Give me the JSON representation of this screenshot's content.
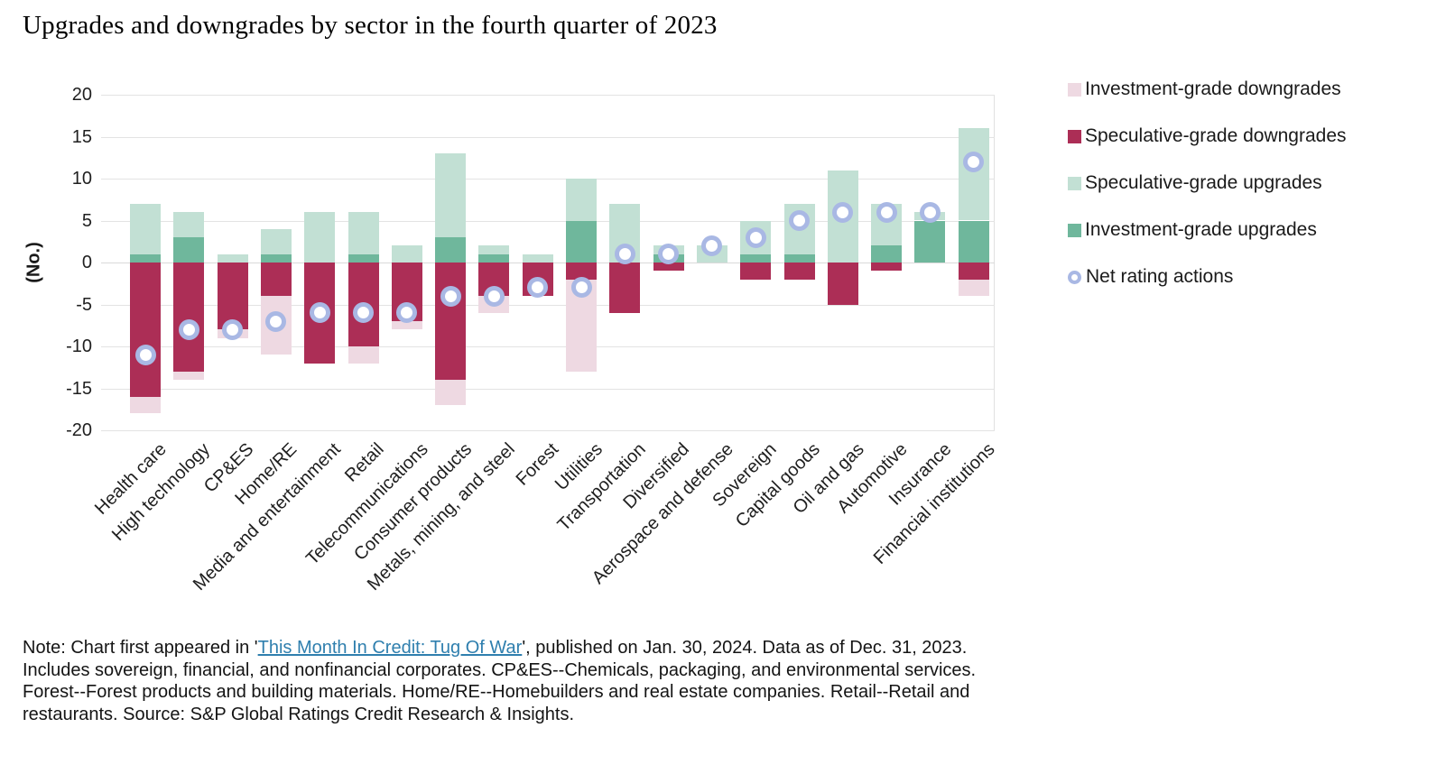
{
  "title": "Upgrades and downgrades by sector in the fourth quarter of 2023",
  "y_axis_label": "(No.)",
  "colors": {
    "investment_grade_downgrades": "#eed9e2",
    "speculative_grade_downgrades": "#ac2e56",
    "speculative_grade_upgrades": "#c2e0d4",
    "investment_grade_upgrades": "#6fb79c",
    "net_rating_marker_ring": "#a9b8e4",
    "net_rating_marker_fill": "#ffffff",
    "gridline": "#e3e3e3",
    "link": "#2f7fae"
  },
  "legend": [
    {
      "label": "Investment-grade downgrades",
      "marker": "square",
      "color": "#eed9e2"
    },
    {
      "label": "Speculative-grade downgrades",
      "marker": "square",
      "color": "#ac2e56"
    },
    {
      "label": "Speculative-grade upgrades",
      "marker": "square",
      "color": "#c2e0d4"
    },
    {
      "label": "Investment-grade upgrades",
      "marker": "square",
      "color": "#6fb79c"
    },
    {
      "label": "Net rating actions",
      "marker": "circle",
      "color": "#a9b8e4"
    }
  ],
  "note": {
    "prefix": "Note: Chart first appeared in '",
    "link_text": "This Month In Credit: Tug Of War",
    "suffix": "', published on Jan. 30, 2024. Data as of Dec. 31, 2023. Includes sovereign, financial, and nonfinancial corporates. CP&ES--Chemicals, packaging, and environmental services. Forest--Forest products and building materials. Home/RE--Homebuilders and real estate companies. Retail--Retail and restaurants. Source: S&P Global Ratings Credit Research & Insights."
  },
  "chart_data": {
    "type": "bar",
    "stacked": true,
    "title": "Upgrades and downgrades by sector in the fourth quarter of 2023",
    "xlabel": "",
    "ylabel": "(No.)",
    "ylim": [
      -20,
      20
    ],
    "yticks": [
      20,
      15,
      10,
      5,
      0,
      -5,
      -10,
      -15,
      -20
    ],
    "grid": true,
    "legend_position": "right",
    "categories": [
      "Health care",
      "High technology",
      "CP&ES",
      "Home/RE",
      "Media and entertainment",
      "Retail",
      "Telecommunications",
      "Consumer products",
      "Metals, mining, and steel",
      "Forest",
      "Utilities",
      "Transportation",
      "Diversified",
      "Aerospace and defense",
      "Sovereign",
      "Capital goods",
      "Oil and gas",
      "Automotive",
      "Insurance",
      "Financial institutions"
    ],
    "series": [
      {
        "name": "Investment-grade downgrades",
        "type": "bar",
        "color": "#eed9e2",
        "values": [
          -2,
          -1,
          -1,
          -7,
          0,
          -2,
          -1,
          -3,
          -2,
          0,
          -11,
          0,
          0,
          0,
          0,
          0,
          0,
          0,
          0,
          -2
        ]
      },
      {
        "name": "Speculative-grade downgrades",
        "type": "bar",
        "color": "#ac2e56",
        "values": [
          -16,
          -13,
          -8,
          -4,
          -12,
          -10,
          -7,
          -14,
          -4,
          -4,
          -2,
          -6,
          -1,
          0,
          -2,
          -2,
          -5,
          -1,
          0,
          -2
        ]
      },
      {
        "name": "Speculative-grade upgrades",
        "type": "bar",
        "color": "#c2e0d4",
        "values": [
          6,
          3,
          1,
          3,
          6,
          5,
          2,
          10,
          1,
          1,
          5,
          7,
          1,
          2,
          4,
          6,
          11,
          5,
          1,
          11
        ]
      },
      {
        "name": "Investment-grade upgrades",
        "type": "bar",
        "color": "#6fb79c",
        "values": [
          1,
          3,
          0,
          1,
          0,
          1,
          0,
          3,
          1,
          0,
          5,
          0,
          1,
          0,
          1,
          1,
          0,
          2,
          5,
          5
        ]
      },
      {
        "name": "Net rating actions",
        "type": "scatter",
        "color": "#a9b8e4",
        "values": [
          -11,
          -8,
          -8,
          -7,
          -6,
          -6,
          -6,
          -4,
          -4,
          -3,
          -3,
          1,
          1,
          2,
          3,
          5,
          6,
          6,
          6,
          12
        ]
      }
    ]
  }
}
